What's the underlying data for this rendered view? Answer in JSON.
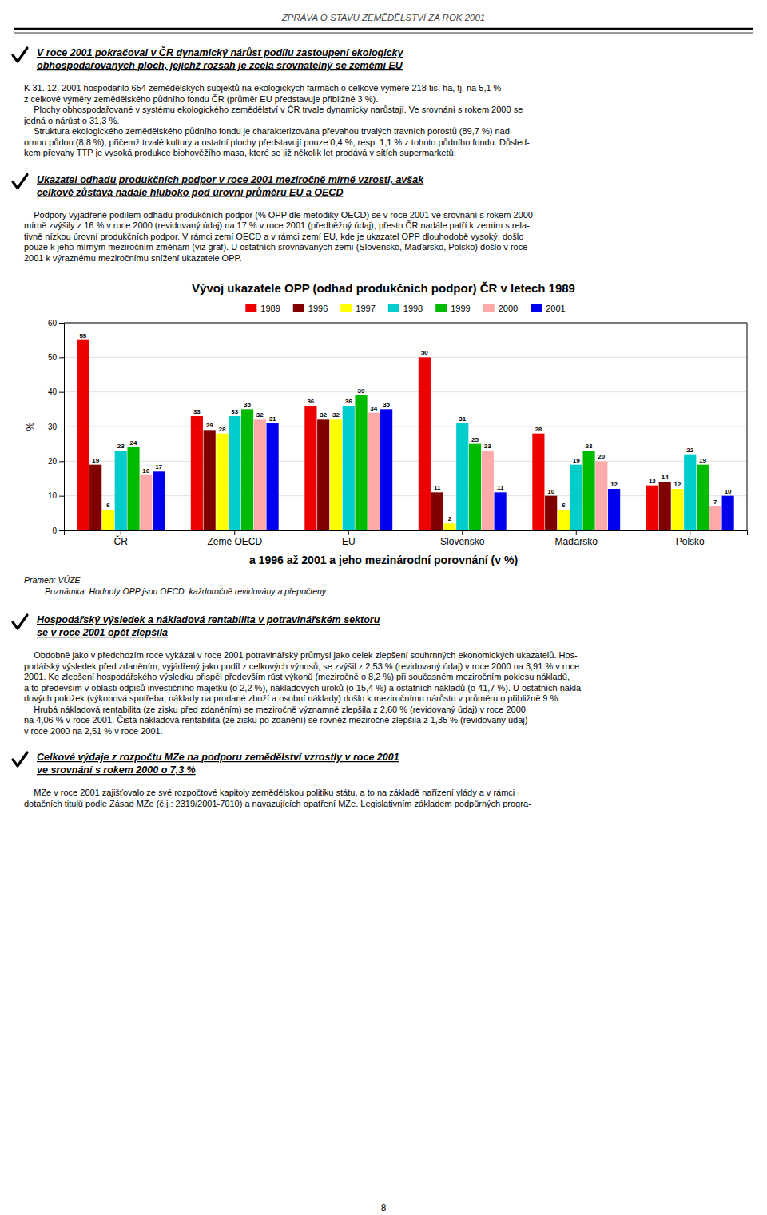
{
  "page_title": "ZPRÁVA O STAVU ZEMĚDĚLSTVÍ ZA ROK 2001",
  "page_number": "8",
  "sections_before_chart": [
    {
      "title_lines": [
        "V roce 2001 pokračoval v ČR dynamický nárůst podílu zastoupení ekologicky",
        "obhospodařovaných ploch, jejichž rozsah je zcela srovnatelný se zeměmi EU"
      ],
      "body_lines": [
        "K 31. 12. 2001 hospodařilo 654 zemědělských subjektů na ekologických farmách o celkové výměře 218 tis. ha, tj. na 5,1 %",
        "z celkové výměry zemědělského půdního fondu ČR (průměr EU představuje přibližně 3 %).",
        "    Plochy obhospodařované v systému ekologického zemědělství v ČR trvale dynamicky narůstají. Ve srovnání s rokem 2000 se",
        "jedná o nárůst o 31,3 %.",
        "    Struktura ekologického zemědělského půdního fondu je charakterizována převahou trvalých travních porostů (89,7 %) nad",
        "ornou půdou (8,8 %), přičemž trvalé kultury a ostatní plochy představují pouze 0,4 %, resp. 1,1 % z tohoto půdního fondu. Důsled-",
        "kem převahy TTP je vysoká produkce biohověžího masa, které se již několik let prodává v sítích supermarketů."
      ]
    },
    {
      "title_lines": [
        "Ukazatel odhadu produkčních podpor v roce 2001 meziročně mírně vzrostl, avšak",
        "celkově zůstává nadále hluboko pod úrovní průměru EU a OECD"
      ],
      "body_lines": [
        "    Podpory vyjádřené podílem odhadu produkčních podpor (% OPP dle metodiky OECD) se v roce 2001 ve srovnání s rokem 2000",
        "mírně zvýšily z 16 % v roce 2000 (revidovaný údaj) na 17 % v roce 2001 (předběžný údaj), přesto ČR nadále patří k zemím s rela-",
        "tivně nízkou úrovní produkčních podpor. V rámci zemí OECD a v rámci zemí EU, kde je ukazatel OPP dlouhodobě vysoký, došlo",
        "pouze k jeho mírným meziročním změnám (viz graf). U ostatních srovnávaných zemí (Slovensko, Maďarsko, Polsko) došlo v roce",
        "2001 k výraznému meziročnímu snížení ukazatele OPP."
      ]
    }
  ],
  "chart_data": {
    "type": "bar",
    "title": "Vývoj ukazatele OPP (odhad produkčních podpor) ČR v letech 1989",
    "subtitle": "a 1996 až 2001 a jeho mezinárodní porovnání (v %)",
    "ylabel": "%",
    "categories": [
      "ČR",
      "Země OECD",
      "EU",
      "Slovensko",
      "Maďarsko",
      "Polsko"
    ],
    "series": [
      {
        "name": "1989",
        "color": "#ee0000",
        "values": [
          55,
          33,
          36,
          50,
          28,
          13
        ]
      },
      {
        "name": "1996",
        "color": "#800000",
        "values": [
          19,
          29,
          32,
          11,
          10,
          14
        ]
      },
      {
        "name": "1997",
        "color": "#ffff00",
        "values": [
          6,
          28,
          32,
          2,
          6,
          12
        ]
      },
      {
        "name": "1998",
        "color": "#00cccc",
        "values": [
          23,
          33,
          36,
          31,
          19,
          22
        ]
      },
      {
        "name": "1999",
        "color": "#00bb00",
        "values": [
          24,
          35,
          39,
          25,
          23,
          19
        ]
      },
      {
        "name": "2000",
        "color": "#ffaaaa",
        "values": [
          16,
          32,
          34,
          23,
          20,
          7
        ]
      },
      {
        "name": "2001",
        "color": "#0000ee",
        "values": [
          17,
          31,
          35,
          11,
          12,
          10
        ]
      }
    ],
    "ylim": [
      0,
      60
    ],
    "yticks": [
      0,
      10,
      20,
      30,
      40,
      50,
      60
    ],
    "grid": true,
    "legend": "top",
    "data_labels": true
  },
  "source_text": "Pramen: VÚZE",
  "note_text": "Poznámka: Hodnoty OPP jsou OECD  každoročně revidovány a přepočteny",
  "sections_after_chart": [
    {
      "title_lines": [
        "Hospodářský výsledek a nákladová rentabilita v potravinářském sektoru",
        "se v roce 2001 opět zlepšila"
      ],
      "body_lines": [
        "    Obdobně jako v předchozím roce vykázal v roce 2001 potravinářský průmysl jako celek zlepšení souhrnných ekonomických ukazatelů. Hos-",
        "podářský výsledek před zdaněním, vyjádřený jako podíl z celkových výnosů, se zvýšil z 2,53 % (revidovaný údaj) v roce 2000 na 3,91 % v roce",
        "2001. Ke zlepšení hospodářského výsledku přispěl především růst výkonů (meziročně o 8,2 %) při současném meziročním poklesu nákladů,",
        "a to především v oblasti odpisů investičního majetku (o 2,2 %), nákladových úroků (o 15,4 %) a ostatních nákladů (o 41,7 %). U ostatních nákla-",
        "dových položek (výkonová spotřeba, náklady na prodané zboží a osobní náklady) došlo k meziročnímu nárůstu v průměru o přibližně 9 %.",
        "    Hrubá nákladová rentabilita (ze zisku před zdaněním) se meziročně významně zlepšila z 2,60 % (revidovaný údaj) v roce 2000",
        "na 4,06 % v roce 2001. Čistá nákladová rentabilita (ze zisku po zdanění) se rovněž meziročně zlepšila z 1,35 % (revidovaný údaj)",
        "v roce 2000 na 2,51 % v roce 2001."
      ]
    },
    {
      "title_lines": [
        "Celkové výdaje z rozpočtu MZe na podporu zemědělství vzrostly v roce 2001",
        "ve srovnání s rokem 2000 o 7,3 %"
      ],
      "body_lines": [
        "    MZe v roce 2001 zajišťovalo ze své rozpočtové kapitoly zemědělskou politiku státu, a to na základě nařízení vlády a v rámci",
        "dotačních titulů podle Zásad MZe (č.j.: 2319/2001-7010) a navazujících opatření MZe. Legislativním základem podpůrných progra-"
      ]
    }
  ]
}
